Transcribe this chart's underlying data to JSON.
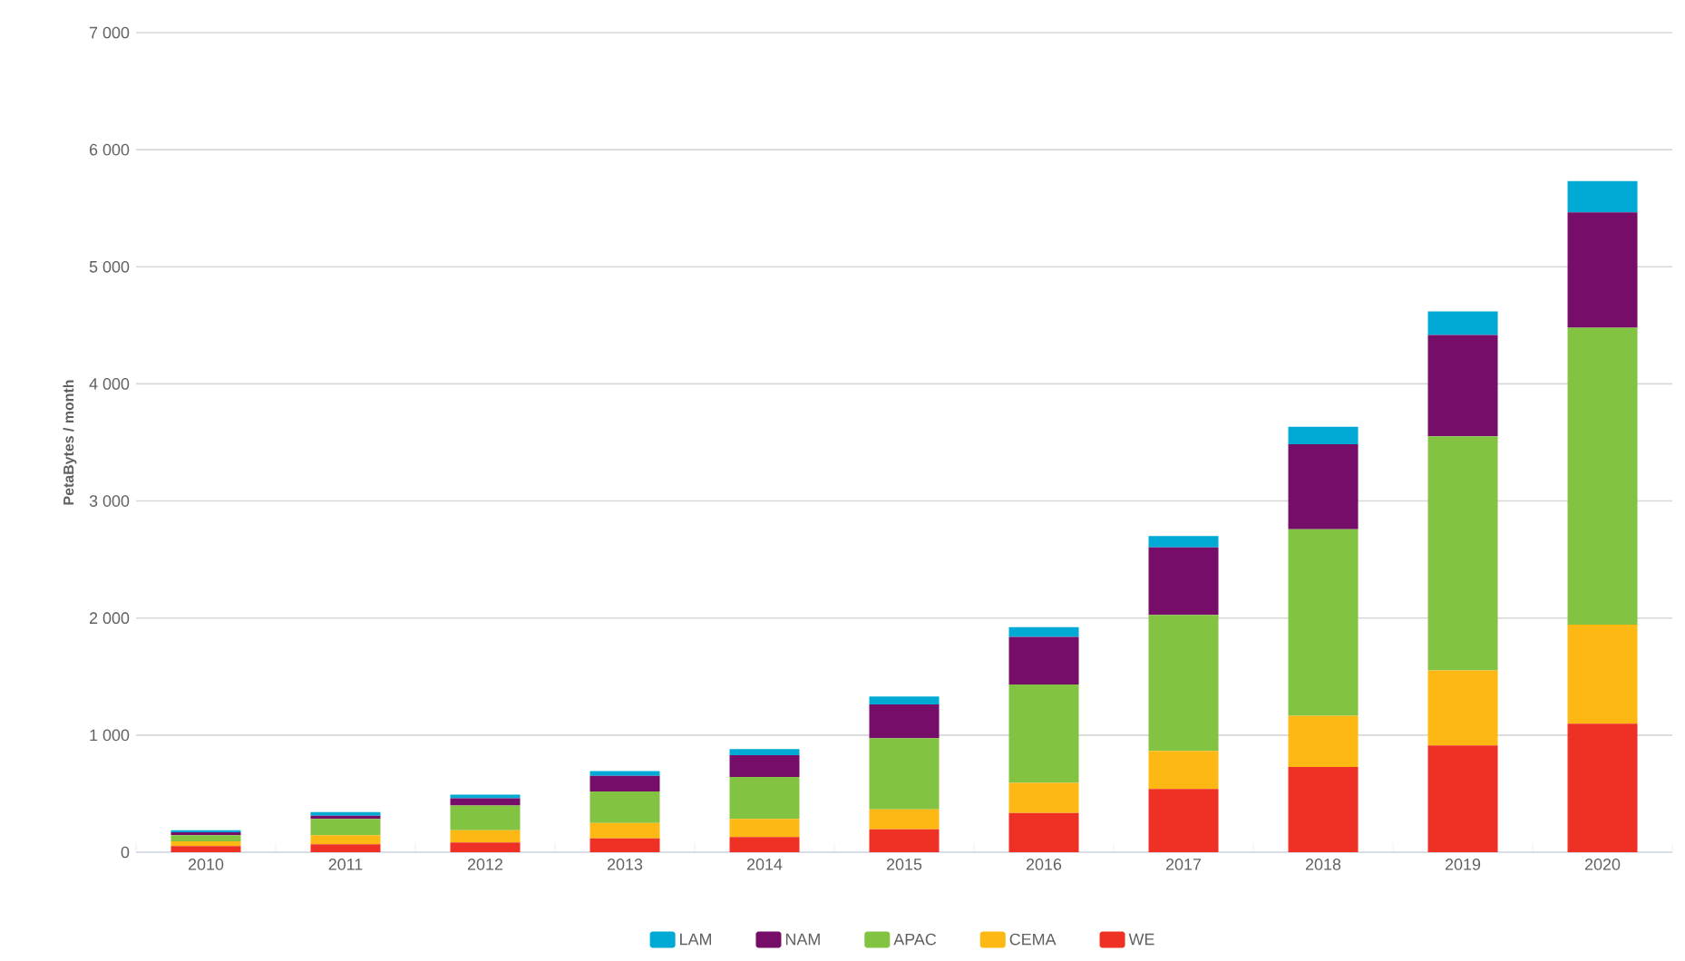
{
  "chart_data": {
    "type": "bar",
    "stacked": true,
    "ylabel": "PetaBytes / month",
    "categories": [
      "2010",
      "2011",
      "2012",
      "2013",
      "2014",
      "2015",
      "2016",
      "2017",
      "2018",
      "2019",
      "2020"
    ],
    "series": [
      {
        "name": "WE",
        "color": "#ee3124",
        "values": [
          52,
          67,
          83,
          119,
          130,
          196,
          335,
          541,
          727,
          912,
          1098
        ]
      },
      {
        "name": "CEMA",
        "color": "#fdb813",
        "values": [
          41,
          78,
          104,
          130,
          155,
          170,
          258,
          325,
          438,
          640,
          845
        ]
      },
      {
        "name": "APAC",
        "color": "#82c341",
        "values": [
          52,
          140,
          212,
          269,
          357,
          608,
          840,
          1160,
          1593,
          2000,
          2536
        ]
      },
      {
        "name": "NAM",
        "color": "#760d68",
        "values": [
          26,
          26,
          62,
          135,
          187,
          289,
          407,
          577,
          727,
          866,
          985
        ]
      },
      {
        "name": "LAM",
        "color": "#00aad4",
        "values": [
          16,
          31,
          31,
          41,
          52,
          67,
          83,
          98,
          149,
          201,
          268
        ]
      }
    ],
    "ylim": [
      0,
      7000
    ],
    "yticks": [
      0,
      {
        "value": 1000,
        "label": "1 000"
      },
      {
        "value": 2000,
        "label": "2 000"
      },
      {
        "value": 3000,
        "label": "3 000"
      },
      {
        "value": 4000,
        "label": "4 000"
      },
      {
        "value": 5000,
        "label": "5 000"
      },
      {
        "value": 6000,
        "label": "6 000"
      },
      {
        "value": 7000,
        "label": "7 000"
      }
    ],
    "grid": "y",
    "legend": "bottom"
  }
}
